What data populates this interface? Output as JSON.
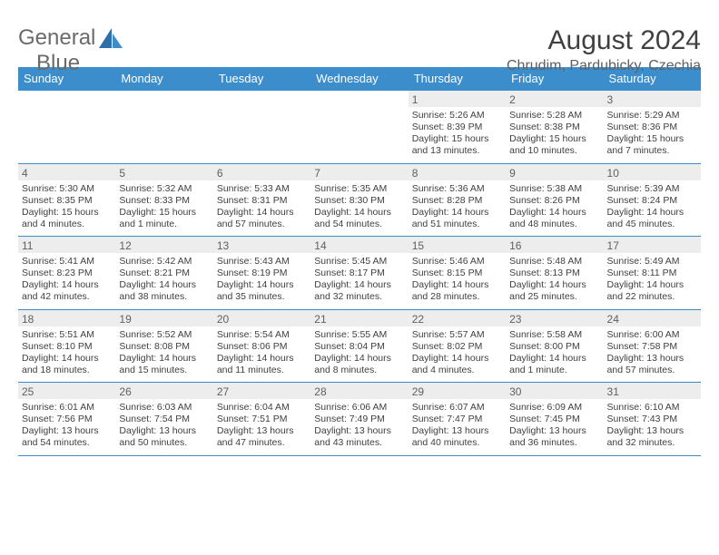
{
  "logo": {
    "text1": "General",
    "text2": "Blue"
  },
  "title": "August 2024",
  "location": "Chrudim, Pardubicky, Czechia",
  "colors": {
    "header_bg": "#3c8dcc",
    "daynum_bg": "#ededed",
    "border": "#3c8dcc",
    "text": "#404040"
  },
  "weekdays": [
    "Sunday",
    "Monday",
    "Tuesday",
    "Wednesday",
    "Thursday",
    "Friday",
    "Saturday"
  ],
  "weeks": [
    [
      null,
      null,
      null,
      null,
      {
        "n": "1",
        "sr": "5:26 AM",
        "ss": "8:39 PM",
        "dl": "15 hours and 13 minutes."
      },
      {
        "n": "2",
        "sr": "5:28 AM",
        "ss": "8:38 PM",
        "dl": "15 hours and 10 minutes."
      },
      {
        "n": "3",
        "sr": "5:29 AM",
        "ss": "8:36 PM",
        "dl": "15 hours and 7 minutes."
      }
    ],
    [
      {
        "n": "4",
        "sr": "5:30 AM",
        "ss": "8:35 PM",
        "dl": "15 hours and 4 minutes."
      },
      {
        "n": "5",
        "sr": "5:32 AM",
        "ss": "8:33 PM",
        "dl": "15 hours and 1 minute."
      },
      {
        "n": "6",
        "sr": "5:33 AM",
        "ss": "8:31 PM",
        "dl": "14 hours and 57 minutes."
      },
      {
        "n": "7",
        "sr": "5:35 AM",
        "ss": "8:30 PM",
        "dl": "14 hours and 54 minutes."
      },
      {
        "n": "8",
        "sr": "5:36 AM",
        "ss": "8:28 PM",
        "dl": "14 hours and 51 minutes."
      },
      {
        "n": "9",
        "sr": "5:38 AM",
        "ss": "8:26 PM",
        "dl": "14 hours and 48 minutes."
      },
      {
        "n": "10",
        "sr": "5:39 AM",
        "ss": "8:24 PM",
        "dl": "14 hours and 45 minutes."
      }
    ],
    [
      {
        "n": "11",
        "sr": "5:41 AM",
        "ss": "8:23 PM",
        "dl": "14 hours and 42 minutes."
      },
      {
        "n": "12",
        "sr": "5:42 AM",
        "ss": "8:21 PM",
        "dl": "14 hours and 38 minutes."
      },
      {
        "n": "13",
        "sr": "5:43 AM",
        "ss": "8:19 PM",
        "dl": "14 hours and 35 minutes."
      },
      {
        "n": "14",
        "sr": "5:45 AM",
        "ss": "8:17 PM",
        "dl": "14 hours and 32 minutes."
      },
      {
        "n": "15",
        "sr": "5:46 AM",
        "ss": "8:15 PM",
        "dl": "14 hours and 28 minutes."
      },
      {
        "n": "16",
        "sr": "5:48 AM",
        "ss": "8:13 PM",
        "dl": "14 hours and 25 minutes."
      },
      {
        "n": "17",
        "sr": "5:49 AM",
        "ss": "8:11 PM",
        "dl": "14 hours and 22 minutes."
      }
    ],
    [
      {
        "n": "18",
        "sr": "5:51 AM",
        "ss": "8:10 PM",
        "dl": "14 hours and 18 minutes."
      },
      {
        "n": "19",
        "sr": "5:52 AM",
        "ss": "8:08 PM",
        "dl": "14 hours and 15 minutes."
      },
      {
        "n": "20",
        "sr": "5:54 AM",
        "ss": "8:06 PM",
        "dl": "14 hours and 11 minutes."
      },
      {
        "n": "21",
        "sr": "5:55 AM",
        "ss": "8:04 PM",
        "dl": "14 hours and 8 minutes."
      },
      {
        "n": "22",
        "sr": "5:57 AM",
        "ss": "8:02 PM",
        "dl": "14 hours and 4 minutes."
      },
      {
        "n": "23",
        "sr": "5:58 AM",
        "ss": "8:00 PM",
        "dl": "14 hours and 1 minute."
      },
      {
        "n": "24",
        "sr": "6:00 AM",
        "ss": "7:58 PM",
        "dl": "13 hours and 57 minutes."
      }
    ],
    [
      {
        "n": "25",
        "sr": "6:01 AM",
        "ss": "7:56 PM",
        "dl": "13 hours and 54 minutes."
      },
      {
        "n": "26",
        "sr": "6:03 AM",
        "ss": "7:54 PM",
        "dl": "13 hours and 50 minutes."
      },
      {
        "n": "27",
        "sr": "6:04 AM",
        "ss": "7:51 PM",
        "dl": "13 hours and 47 minutes."
      },
      {
        "n": "28",
        "sr": "6:06 AM",
        "ss": "7:49 PM",
        "dl": "13 hours and 43 minutes."
      },
      {
        "n": "29",
        "sr": "6:07 AM",
        "ss": "7:47 PM",
        "dl": "13 hours and 40 minutes."
      },
      {
        "n": "30",
        "sr": "6:09 AM",
        "ss": "7:45 PM",
        "dl": "13 hours and 36 minutes."
      },
      {
        "n": "31",
        "sr": "6:10 AM",
        "ss": "7:43 PM",
        "dl": "13 hours and 32 minutes."
      }
    ]
  ]
}
